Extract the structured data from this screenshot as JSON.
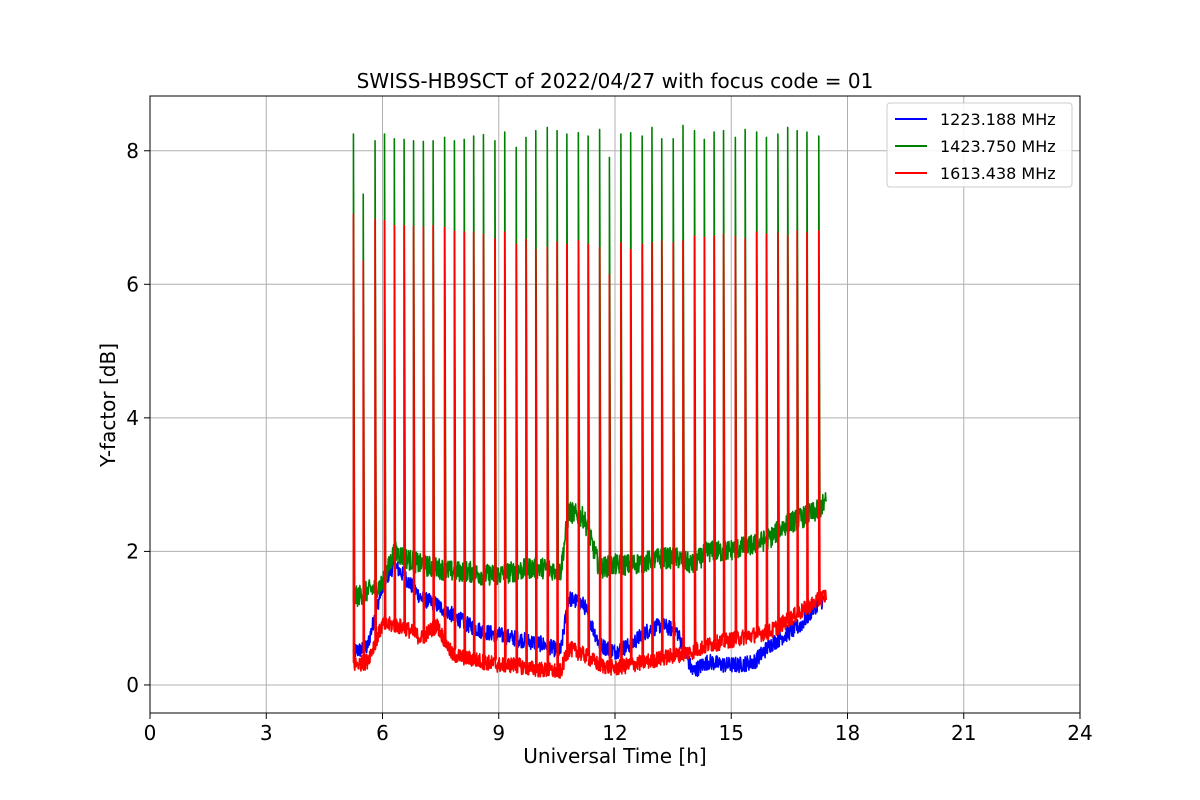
{
  "chart_data": {
    "type": "line",
    "title": "SWISS-HB9SCT of 2022/04/27 with focus code = 01",
    "xlabel": "Universal Time [h]",
    "ylabel": "Y-factor [dB]",
    "xlim": [
      0,
      24
    ],
    "ylim": [
      -0.42,
      8.82
    ],
    "xticks": [
      0,
      3,
      6,
      9,
      12,
      15,
      18,
      21,
      24
    ],
    "xtick_labels": [
      "0",
      "3",
      "6",
      "9",
      "12",
      "15",
      "18",
      "21",
      "24"
    ],
    "yticks": [
      0,
      2,
      4,
      6,
      8
    ],
    "ytick_labels": [
      "0",
      "2",
      "4",
      "6",
      "8"
    ],
    "grid": true,
    "legend_position": "top-right",
    "series": [
      {
        "name": "1223.188 MHz",
        "color": "#0000ff",
        "x": [
          5.25,
          5.6,
          6.0,
          6.3,
          6.6,
          7.0,
          7.4,
          7.8,
          8.2,
          8.6,
          9.0,
          9.4,
          9.8,
          10.2,
          10.6,
          10.8,
          11.2,
          11.6,
          12.0,
          12.4,
          12.8,
          13.2,
          13.6,
          14.0,
          14.4,
          14.8,
          15.2,
          15.6,
          16.0,
          16.4,
          16.8,
          17.2,
          17.45
        ],
        "y": [
          0.5,
          0.55,
          1.5,
          1.8,
          1.6,
          1.3,
          1.2,
          1.05,
          0.9,
          0.8,
          0.75,
          0.7,
          0.65,
          0.6,
          0.5,
          1.3,
          1.2,
          0.6,
          0.5,
          0.6,
          0.8,
          0.9,
          0.8,
          0.2,
          0.35,
          0.3,
          0.3,
          0.35,
          0.6,
          0.75,
          0.9,
          1.2,
          1.3
        ]
      },
      {
        "name": "1423.750 MHz",
        "color": "#008000",
        "x": [
          5.25,
          5.6,
          6.0,
          6.3,
          6.6,
          7.0,
          7.4,
          7.8,
          8.2,
          8.6,
          9.0,
          9.4,
          9.8,
          10.2,
          10.6,
          10.8,
          11.2,
          11.6,
          12.0,
          12.4,
          12.8,
          13.2,
          13.6,
          14.0,
          14.4,
          14.8,
          15.2,
          15.6,
          16.0,
          16.4,
          16.8,
          17.2,
          17.45
        ],
        "y": [
          1.3,
          1.4,
          1.5,
          2.0,
          1.9,
          1.8,
          1.75,
          1.7,
          1.7,
          1.65,
          1.65,
          1.7,
          1.75,
          1.75,
          1.7,
          2.6,
          2.5,
          1.75,
          1.8,
          1.8,
          1.85,
          1.9,
          1.9,
          1.8,
          2.0,
          2.0,
          2.05,
          2.1,
          2.2,
          2.4,
          2.5,
          2.6,
          2.75
        ]
      },
      {
        "name": "1613.438 MHz",
        "color": "#ff0000",
        "x": [
          5.25,
          5.6,
          6.0,
          6.3,
          6.6,
          7.0,
          7.4,
          7.8,
          8.2,
          8.6,
          9.0,
          9.4,
          9.8,
          10.2,
          10.6,
          10.8,
          11.2,
          11.6,
          12.0,
          12.4,
          12.8,
          13.2,
          13.6,
          14.0,
          14.4,
          14.8,
          15.2,
          15.6,
          16.0,
          16.4,
          16.8,
          17.2,
          17.45
        ],
        "y": [
          0.3,
          0.35,
          0.9,
          0.9,
          0.85,
          0.7,
          0.9,
          0.45,
          0.4,
          0.35,
          0.3,
          0.3,
          0.25,
          0.22,
          0.2,
          0.55,
          0.45,
          0.3,
          0.25,
          0.3,
          0.35,
          0.4,
          0.45,
          0.5,
          0.6,
          0.65,
          0.7,
          0.75,
          0.8,
          0.95,
          1.1,
          1.25,
          1.35
        ]
      }
    ],
    "spike_times": [
      5.25,
      5.5,
      5.8,
      6.05,
      6.3,
      6.55,
      6.8,
      7.05,
      7.3,
      7.6,
      7.85,
      8.1,
      8.35,
      8.6,
      8.9,
      9.15,
      9.45,
      9.7,
      9.95,
      10.25,
      10.5,
      10.75,
      11.05,
      11.3,
      11.6,
      11.85,
      12.15,
      12.4,
      12.7,
      12.95,
      13.2,
      13.5,
      13.75,
      14.05,
      14.3,
      14.55,
      14.8,
      15.1,
      15.35,
      15.65,
      15.9,
      16.2,
      16.45,
      16.7,
      16.95,
      17.25
    ],
    "spike_peaks_green": [
      8.25,
      7.35,
      8.15,
      8.25,
      8.18,
      8.17,
      8.15,
      8.14,
      8.15,
      8.2,
      8.15,
      8.17,
      8.22,
      8.24,
      8.15,
      8.28,
      8.05,
      8.2,
      8.3,
      8.35,
      8.3,
      8.25,
      8.27,
      8.22,
      8.32,
      7.9,
      8.25,
      8.27,
      8.22,
      8.35,
      8.18,
      8.18,
      8.38,
      8.3,
      8.17,
      8.28,
      8.3,
      8.2,
      8.32,
      8.28,
      8.2,
      8.25,
      8.35,
      8.3,
      8.28,
      8.22
    ],
    "spike_peaks_red": [
      7.05,
      6.35,
      6.97,
      6.95,
      6.88,
      6.88,
      6.87,
      6.86,
      6.88,
      6.85,
      6.79,
      6.78,
      6.78,
      6.75,
      6.68,
      6.78,
      6.6,
      6.67,
      6.52,
      6.55,
      6.63,
      6.6,
      6.65,
      6.6,
      6.55,
      6.15,
      6.62,
      6.52,
      6.6,
      6.62,
      6.65,
      6.62,
      6.65,
      6.72,
      6.7,
      6.72,
      6.75,
      6.72,
      6.68,
      6.78,
      6.75,
      6.77,
      6.73,
      6.8,
      6.77,
      6.8
    ]
  }
}
